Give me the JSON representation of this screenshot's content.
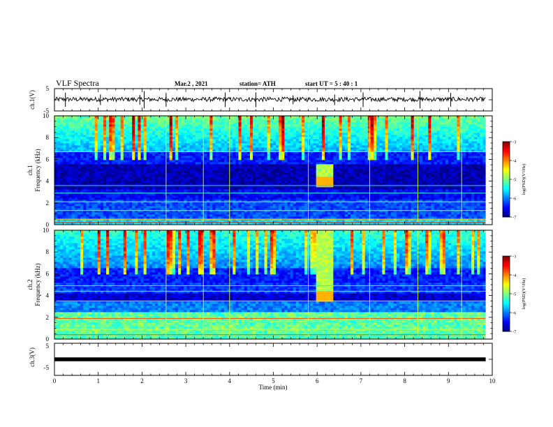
{
  "header": {
    "title": "VLF Spectra",
    "date": "Mar.2  , 2021",
    "station": "station= ATH",
    "start": "start  UT =   5 : 40 : 1"
  },
  "colors": {
    "background": "#ffffff",
    "axes": "#000000",
    "colormap": [
      "#00007f",
      "#0000ff",
      "#007fff",
      "#00ffff",
      "#7fff7f",
      "#ffff00",
      "#ff7f00",
      "#ff0000",
      "#7f0000"
    ]
  },
  "chart_data": [
    {
      "type": "line",
      "ylabel": "ch.1(V)",
      "ylim": [
        -5,
        5
      ],
      "yticks": [
        "5",
        "-5"
      ],
      "xlim": [
        0,
        10
      ],
      "description_values": {
        "baseline_V": 0,
        "noise_amplitude_V": 1
      }
    },
    {
      "type": "heatmap",
      "ylabel": "ch.1\nFrequency (kHz)",
      "ylabel_line1": "ch.1",
      "ylabel_line2": "Frequency (kHz)",
      "ylim": [
        0,
        10
      ],
      "yticks": [
        "0",
        "2",
        "4",
        "6",
        "8",
        "10"
      ],
      "xlim": [
        0,
        10
      ],
      "colorbar": {
        "label": "log(PSD)(V²/Hz)",
        "range": [
          -7,
          -3
        ],
        "ticks": [
          "-3",
          "-4",
          "-5",
          "-6",
          "-7"
        ]
      },
      "feature_time_min": [
        6.0,
        6.35
      ],
      "feature_freq_khz": [
        3.5,
        5.5
      ]
    },
    {
      "type": "heatmap",
      "ylabel": "ch.2\nFrequency (kHz)",
      "ylabel_line1": "ch.2",
      "ylabel_line2": "Frequency (kHz)",
      "ylim": [
        0,
        10
      ],
      "yticks": [
        "0",
        "2",
        "4",
        "6",
        "8",
        "10"
      ],
      "xlim": [
        0,
        10
      ],
      "colorbar": {
        "label": "log(PSD)(V²/Hz)",
        "range": [
          -7,
          -3
        ],
        "ticks": [
          "-3",
          "-4",
          "-5",
          "-6",
          "-7"
        ]
      },
      "feature_time_min": [
        6.0,
        6.35
      ],
      "feature_freq_khz": [
        3.5,
        10
      ]
    },
    {
      "type": "line",
      "ylabel": "ch.3(V)",
      "ylim": [
        -5,
        5
      ],
      "yticks": [
        "5",
        "-5"
      ],
      "xlim": [
        0,
        10
      ],
      "description_values": {
        "baseline_V": 0
      }
    }
  ],
  "xaxis": {
    "label": "Time  (min)",
    "ticks": [
      "0",
      "1",
      "2",
      "3",
      "4",
      "5",
      "6",
      "7",
      "8",
      "9",
      "10"
    ],
    "data_end_min": 9.85
  }
}
